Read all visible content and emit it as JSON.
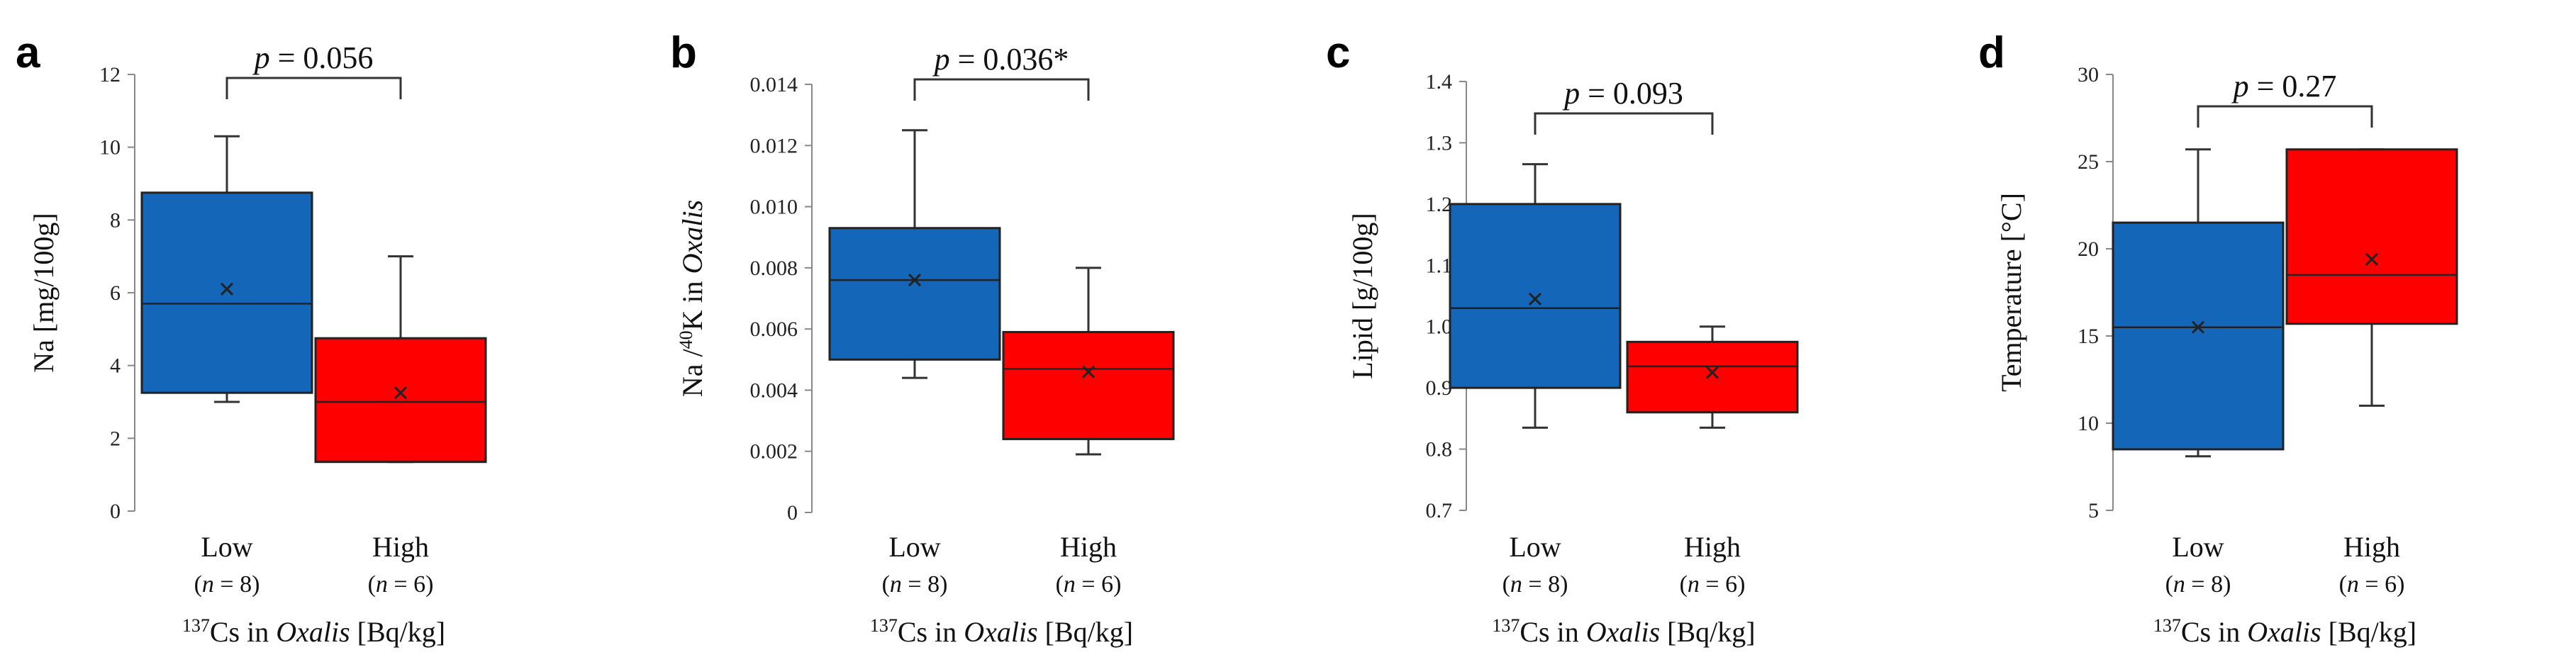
{
  "chart_data": [
    {
      "type": "box",
      "panel": "a",
      "ylabel": "Na [mg/100g]",
      "xlabel_sup": "137",
      "xlabel_pre": "Cs in ",
      "xlabel_italic": "Oxalis",
      "xlabel_post": " [Bq/kg]",
      "ylim": [
        0,
        12
      ],
      "ticks": [
        0,
        2,
        4,
        6,
        8,
        10,
        12
      ],
      "tick_labels": [
        "0",
        "2",
        "4",
        "6",
        "8",
        "10",
        "12"
      ],
      "p_prefix": "p",
      "p_value": " = 0.056",
      "groups": [
        {
          "name": "Low",
          "n_label": "(n = 8)",
          "n_prefix": "(",
          "n_italic": "n",
          "n_rest": " = 8)",
          "color": "#1466b8",
          "min": 3.0,
          "q1": 3.25,
          "median": 5.7,
          "q3": 8.75,
          "max": 10.3,
          "mean": 6.1
        },
        {
          "name": "High",
          "n_label": "(n = 6)",
          "n_prefix": "(",
          "n_italic": "n",
          "n_rest": " = 6)",
          "color": "#ff0000",
          "min": 1.35,
          "q1": 1.35,
          "median": 3.0,
          "q3": 4.75,
          "max": 7.0,
          "mean": 3.25
        }
      ]
    },
    {
      "type": "box",
      "panel": "b",
      "ylabel_pre": "Na /",
      "ylabel_sup": "40",
      "ylabel_mid": "K in ",
      "ylabel_italic": "Oxalis",
      "xlabel_sup": "137",
      "xlabel_pre": "Cs in ",
      "xlabel_italic": "Oxalis",
      "xlabel_post": " [Bq/kg]",
      "ylim": [
        0,
        0.014
      ],
      "ticks": [
        0,
        0.002,
        0.004,
        0.006,
        0.008,
        0.01,
        0.012,
        0.014
      ],
      "tick_labels": [
        "0",
        "0.002",
        "0.004",
        "0.006",
        "0.008",
        "0.010",
        "0.012",
        "0.014"
      ],
      "p_prefix": "p",
      "p_value": " = 0.036*",
      "groups": [
        {
          "name": "Low",
          "n_prefix": "(",
          "n_italic": "n",
          "n_rest": " = 8)",
          "color": "#1466b8",
          "min": 0.0044,
          "q1": 0.005,
          "median": 0.0076,
          "q3": 0.0093,
          "max": 0.0125,
          "mean": 0.0076
        },
        {
          "name": "High",
          "n_prefix": "(",
          "n_italic": "n",
          "n_rest": " = 6)",
          "color": "#ff0000",
          "min": 0.0019,
          "q1": 0.0024,
          "median": 0.0047,
          "q3": 0.0059,
          "max": 0.008,
          "mean": 0.0046
        }
      ]
    },
    {
      "type": "box",
      "panel": "c",
      "ylabel": "Lipid [g/100g]",
      "xlabel_sup": "137",
      "xlabel_pre": "Cs in ",
      "xlabel_italic": "Oxalis",
      "xlabel_post": " [Bq/kg]",
      "ylim": [
        0.7,
        1.4
      ],
      "ticks": [
        0.7,
        0.8,
        0.9,
        1.0,
        1.1,
        1.2,
        1.3,
        1.4
      ],
      "tick_labels": [
        "0.7",
        "0.8",
        "0.9",
        "1.0",
        "1.1",
        "1.2",
        "1.3",
        "1.4"
      ],
      "p_prefix": "p",
      "p_value": " = 0.093",
      "groups": [
        {
          "name": "Low",
          "n_prefix": "(",
          "n_italic": "n",
          "n_rest": " = 8)",
          "color": "#1466b8",
          "min": 0.835,
          "q1": 0.9,
          "median": 1.03,
          "q3": 1.2,
          "max": 1.265,
          "mean": 1.045
        },
        {
          "name": "High",
          "n_prefix": "(",
          "n_italic": "n",
          "n_rest": " = 6)",
          "color": "#ff0000",
          "min": 0.835,
          "q1": 0.86,
          "median": 0.935,
          "q3": 0.975,
          "max": 1.0,
          "mean": 0.925
        }
      ]
    },
    {
      "type": "box",
      "panel": "d",
      "ylabel": "Temperature [°C]",
      "xlabel_sup": "137",
      "xlabel_pre": "Cs in ",
      "xlabel_italic": "Oxalis",
      "xlabel_post": " [Bq/kg]",
      "ylim": [
        5,
        30
      ],
      "ticks": [
        5,
        10,
        15,
        20,
        25,
        30
      ],
      "tick_labels": [
        "5",
        "10",
        "15",
        "20",
        "25",
        "30"
      ],
      "p_prefix": "p",
      "p_value": " = 0.27",
      "groups": [
        {
          "name": "Low",
          "n_prefix": "(",
          "n_italic": "n",
          "n_rest": " = 8)",
          "color": "#1466b8",
          "min": 8.1,
          "q1": 8.5,
          "median": 15.5,
          "q3": 21.5,
          "max": 25.7,
          "mean": 15.5
        },
        {
          "name": "High",
          "n_prefix": "(",
          "n_italic": "n",
          "n_rest": " = 6)",
          "color": "#ff0000",
          "min": 11.0,
          "q1": 15.7,
          "median": 18.5,
          "q3": 25.7,
          "max": 25.7,
          "mean": 19.4
        }
      ]
    }
  ]
}
